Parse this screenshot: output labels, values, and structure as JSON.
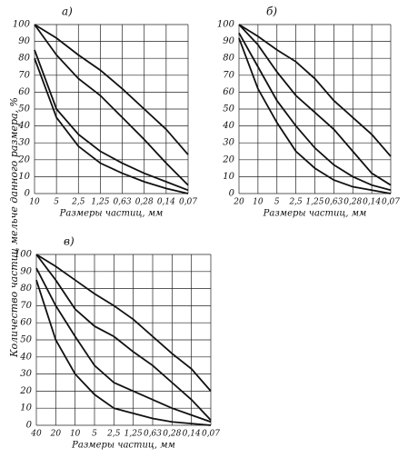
{
  "figure": {
    "ylabel": "Количество частиц мельче данного размера, %"
  },
  "chart_data": [
    {
      "type": "line",
      "label": "а)",
      "xlabel": "Размеры частиц, мм",
      "categories": [
        "10",
        "5",
        "2,5",
        "1,25",
        "0,63",
        "0,28",
        "0,14",
        "0,07"
      ],
      "ylim": [
        0,
        100
      ],
      "yticks": [
        0,
        10,
        20,
        30,
        40,
        50,
        60,
        70,
        80,
        90,
        100
      ],
      "grid": true,
      "series": [
        {
          "color": "#111111",
          "values": [
            100,
            92,
            82,
            73,
            62,
            50,
            38,
            23
          ]
        },
        {
          "color": "#111111",
          "values": [
            100,
            82,
            68,
            58,
            45,
            32,
            18,
            5
          ]
        },
        {
          "color": "#111111",
          "values": [
            85,
            50,
            35,
            25,
            18,
            12,
            7,
            2
          ]
        },
        {
          "color": "#111111",
          "values": [
            80,
            45,
            28,
            18,
            12,
            7,
            3,
            0
          ]
        }
      ]
    },
    {
      "type": "line",
      "label": "б)",
      "xlabel": "Размеры частиц, мм",
      "categories": [
        "20",
        "10",
        "5",
        "2,5",
        "1,25",
        "0,63",
        "0,28",
        "0,14",
        "0,07"
      ],
      "ylim": [
        0,
        100
      ],
      "yticks": [
        0,
        10,
        20,
        30,
        40,
        50,
        60,
        70,
        80,
        90,
        100
      ],
      "grid": true,
      "series": [
        {
          "color": "#111111",
          "values": [
            100,
            93,
            85,
            78,
            68,
            55,
            45,
            35,
            22
          ]
        },
        {
          "color": "#111111",
          "values": [
            100,
            88,
            72,
            58,
            48,
            38,
            25,
            12,
            5
          ]
        },
        {
          "color": "#111111",
          "values": [
            95,
            75,
            55,
            40,
            27,
            17,
            10,
            5,
            2
          ]
        },
        {
          "color": "#111111",
          "values": [
            92,
            62,
            42,
            25,
            15,
            8,
            4,
            2,
            0
          ]
        }
      ]
    },
    {
      "type": "line",
      "label": "в)",
      "xlabel": "Размеры частиц, мм",
      "categories": [
        "40",
        "20",
        "10",
        "5",
        "2,5",
        "1,25",
        "0,63",
        "0,28",
        "0,14",
        "0,07"
      ],
      "ylim": [
        0,
        100
      ],
      "yticks": [
        0,
        10,
        20,
        30,
        40,
        50,
        60,
        70,
        80,
        90,
        100
      ],
      "grid": true,
      "series": [
        {
          "color": "#111111",
          "values": [
            100,
            93,
            85,
            77,
            70,
            62,
            52,
            42,
            33,
            20
          ]
        },
        {
          "color": "#111111",
          "values": [
            100,
            85,
            68,
            58,
            52,
            43,
            35,
            25,
            15,
            3
          ]
        },
        {
          "color": "#111111",
          "values": [
            92,
            70,
            52,
            35,
            25,
            20,
            15,
            10,
            6,
            2
          ]
        },
        {
          "color": "#111111",
          "values": [
            85,
            50,
            30,
            18,
            10,
            7,
            4,
            2,
            1,
            0
          ]
        }
      ]
    }
  ]
}
